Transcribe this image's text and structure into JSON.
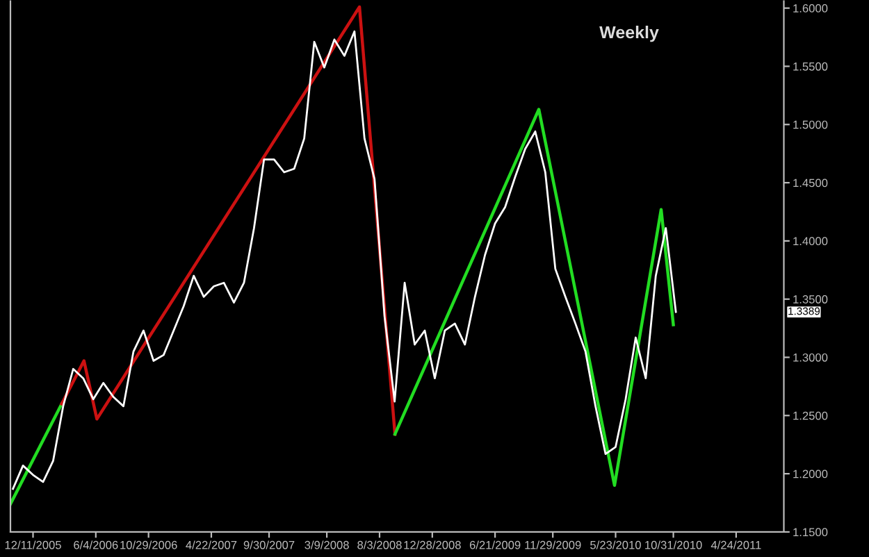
{
  "chart_data": {
    "type": "line",
    "title": "Weekly",
    "xlim": [
      "2005-10-09",
      "2011-09-04"
    ],
    "ylim": [
      1.15,
      1.606
    ],
    "xticks": [
      {
        "value": "2005-12-11",
        "label": "12/11/2005"
      },
      {
        "value": "2006-06-04",
        "label": "6/4/2006"
      },
      {
        "value": "2006-10-29",
        "label": "10/29/2006"
      },
      {
        "value": "2007-04-22",
        "label": "4/22/2007"
      },
      {
        "value": "2007-09-30",
        "label": "9/30/2007"
      },
      {
        "value": "2008-03-09",
        "label": "3/9/2008"
      },
      {
        "value": "2008-08-03",
        "label": "8/3/2008"
      },
      {
        "value": "2008-12-28",
        "label": "12/28/2008"
      },
      {
        "value": "2009-06-21",
        "label": "6/21/2009"
      },
      {
        "value": "2009-11-29",
        "label": "11/29/2009"
      },
      {
        "value": "2010-05-23",
        "label": "5/23/2010"
      },
      {
        "value": "2010-10-31",
        "label": "10/31/2010"
      },
      {
        "value": "2011-04-24",
        "label": "4/24/2011"
      }
    ],
    "yticks": [
      {
        "value": 1.15,
        "label": "1.1500"
      },
      {
        "value": 1.2,
        "label": "1.2000"
      },
      {
        "value": 1.25,
        "label": "1.2500"
      },
      {
        "value": 1.3,
        "label": "1.3000"
      },
      {
        "value": 1.35,
        "label": "1.3500"
      },
      {
        "value": 1.4,
        "label": "1.4000"
      },
      {
        "value": 1.45,
        "label": "1.4500"
      },
      {
        "value": 1.5,
        "label": "1.5000"
      },
      {
        "value": 1.55,
        "label": "1.5500"
      },
      {
        "value": 1.6,
        "label": "1.6000"
      }
    ],
    "grid": false,
    "legend": false,
    "marker": "none",
    "line_style": "solid",
    "annotations": [
      {
        "text": "1.3389",
        "y": 1.3389
      }
    ],
    "series": [
      {
        "color": "#ffffff",
        "x": [
          "2005-10-16",
          "2005-11-13",
          "2005-12-11",
          "2006-01-08",
          "2006-02-05",
          "2006-03-05",
          "2006-04-02",
          "2006-04-30",
          "2006-05-28",
          "2006-06-25",
          "2006-07-23",
          "2006-08-20",
          "2006-09-17",
          "2006-10-15",
          "2006-11-12",
          "2006-12-10",
          "2007-01-07",
          "2007-02-04",
          "2007-03-04",
          "2007-04-01",
          "2007-04-29",
          "2007-05-27",
          "2007-06-24",
          "2007-07-22",
          "2007-08-19",
          "2007-09-16",
          "2007-10-14",
          "2007-11-11",
          "2007-12-09",
          "2008-01-06",
          "2008-02-03",
          "2008-03-02",
          "2008-03-30",
          "2008-04-27",
          "2008-05-25",
          "2008-06-22",
          "2008-07-20",
          "2008-08-17",
          "2008-09-14",
          "2008-10-12",
          "2008-11-09",
          "2008-12-07",
          "2009-01-04",
          "2009-02-01",
          "2009-03-01",
          "2009-03-29",
          "2009-04-26",
          "2009-05-24",
          "2009-06-21",
          "2009-07-19",
          "2009-08-16",
          "2009-09-13",
          "2009-10-11",
          "2009-11-08",
          "2009-12-06",
          "2010-01-03",
          "2010-01-31",
          "2010-02-28",
          "2010-03-28",
          "2010-04-25",
          "2010-05-23",
          "2010-06-20",
          "2010-07-18",
          "2010-08-15",
          "2010-09-12",
          "2010-10-10",
          "2010-11-07"
        ],
        "values": [
          1.187,
          1.207,
          1.199,
          1.193,
          1.211,
          1.258,
          1.29,
          1.282,
          1.264,
          1.278,
          1.266,
          1.258,
          1.305,
          1.323,
          1.297,
          1.302,
          1.323,
          1.344,
          1.37,
          1.352,
          1.361,
          1.364,
          1.347,
          1.364,
          1.411,
          1.47,
          1.47,
          1.459,
          1.462,
          1.488,
          1.571,
          1.549,
          1.573,
          1.559,
          1.58,
          1.488,
          1.453,
          1.335,
          1.262,
          1.364,
          1.311,
          1.323,
          1.282,
          1.323,
          1.329,
          1.311,
          1.352,
          1.388,
          1.415,
          1.429,
          1.455,
          1.479,
          1.494,
          1.459,
          1.376,
          1.352,
          1.329,
          1.305,
          1.258,
          1.217,
          1.223,
          1.264,
          1.317,
          1.282,
          1.37,
          1.411,
          1.339
        ]
      },
      {
        "color": "#22dd22",
        "x": [
          "2005-10-09",
          "2006-03-01"
        ],
        "values": [
          1.174,
          1.26
        ]
      },
      {
        "color": "#cc1111",
        "x": [
          "2006-03-01",
          "2006-05-02",
          "2006-06-07",
          "2008-06-08",
          "2008-09-15"
        ],
        "values": [
          1.26,
          1.297,
          1.247,
          1.601,
          1.234
        ]
      },
      {
        "color": "#22dd22",
        "x": [
          "2008-09-15",
          "2009-10-21",
          "2010-05-20",
          "2010-09-27",
          "2010-10-31"
        ],
        "values": [
          1.234,
          1.513,
          1.19,
          1.427,
          1.328
        ]
      }
    ]
  }
}
